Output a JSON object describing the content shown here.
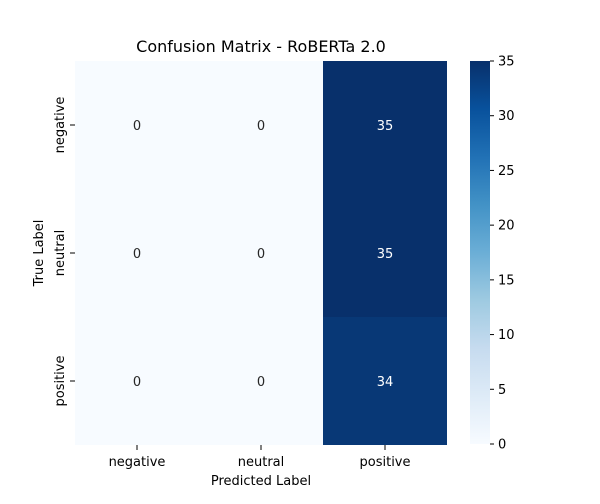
{
  "chart_data": {
    "type": "heatmap",
    "title": "Confusion Matrix - RoBERTa 2.0",
    "xlabel": "Predicted Label",
    "ylabel": "True Label",
    "x_categories": [
      "negative",
      "neutral",
      "positive"
    ],
    "y_categories": [
      "negative",
      "neutral",
      "positive"
    ],
    "values": [
      [
        0,
        0,
        35
      ],
      [
        0,
        0,
        35
      ],
      [
        0,
        0,
        34
      ]
    ],
    "colorbar": {
      "min": 0,
      "max": 35,
      "ticks": [
        0,
        5,
        10,
        15,
        20,
        25,
        30,
        35
      ],
      "colormap": "Blues"
    },
    "colors": {
      "low": "#f7fbff",
      "high": "#08306b"
    },
    "legend": "right colorbar",
    "grid": false
  }
}
